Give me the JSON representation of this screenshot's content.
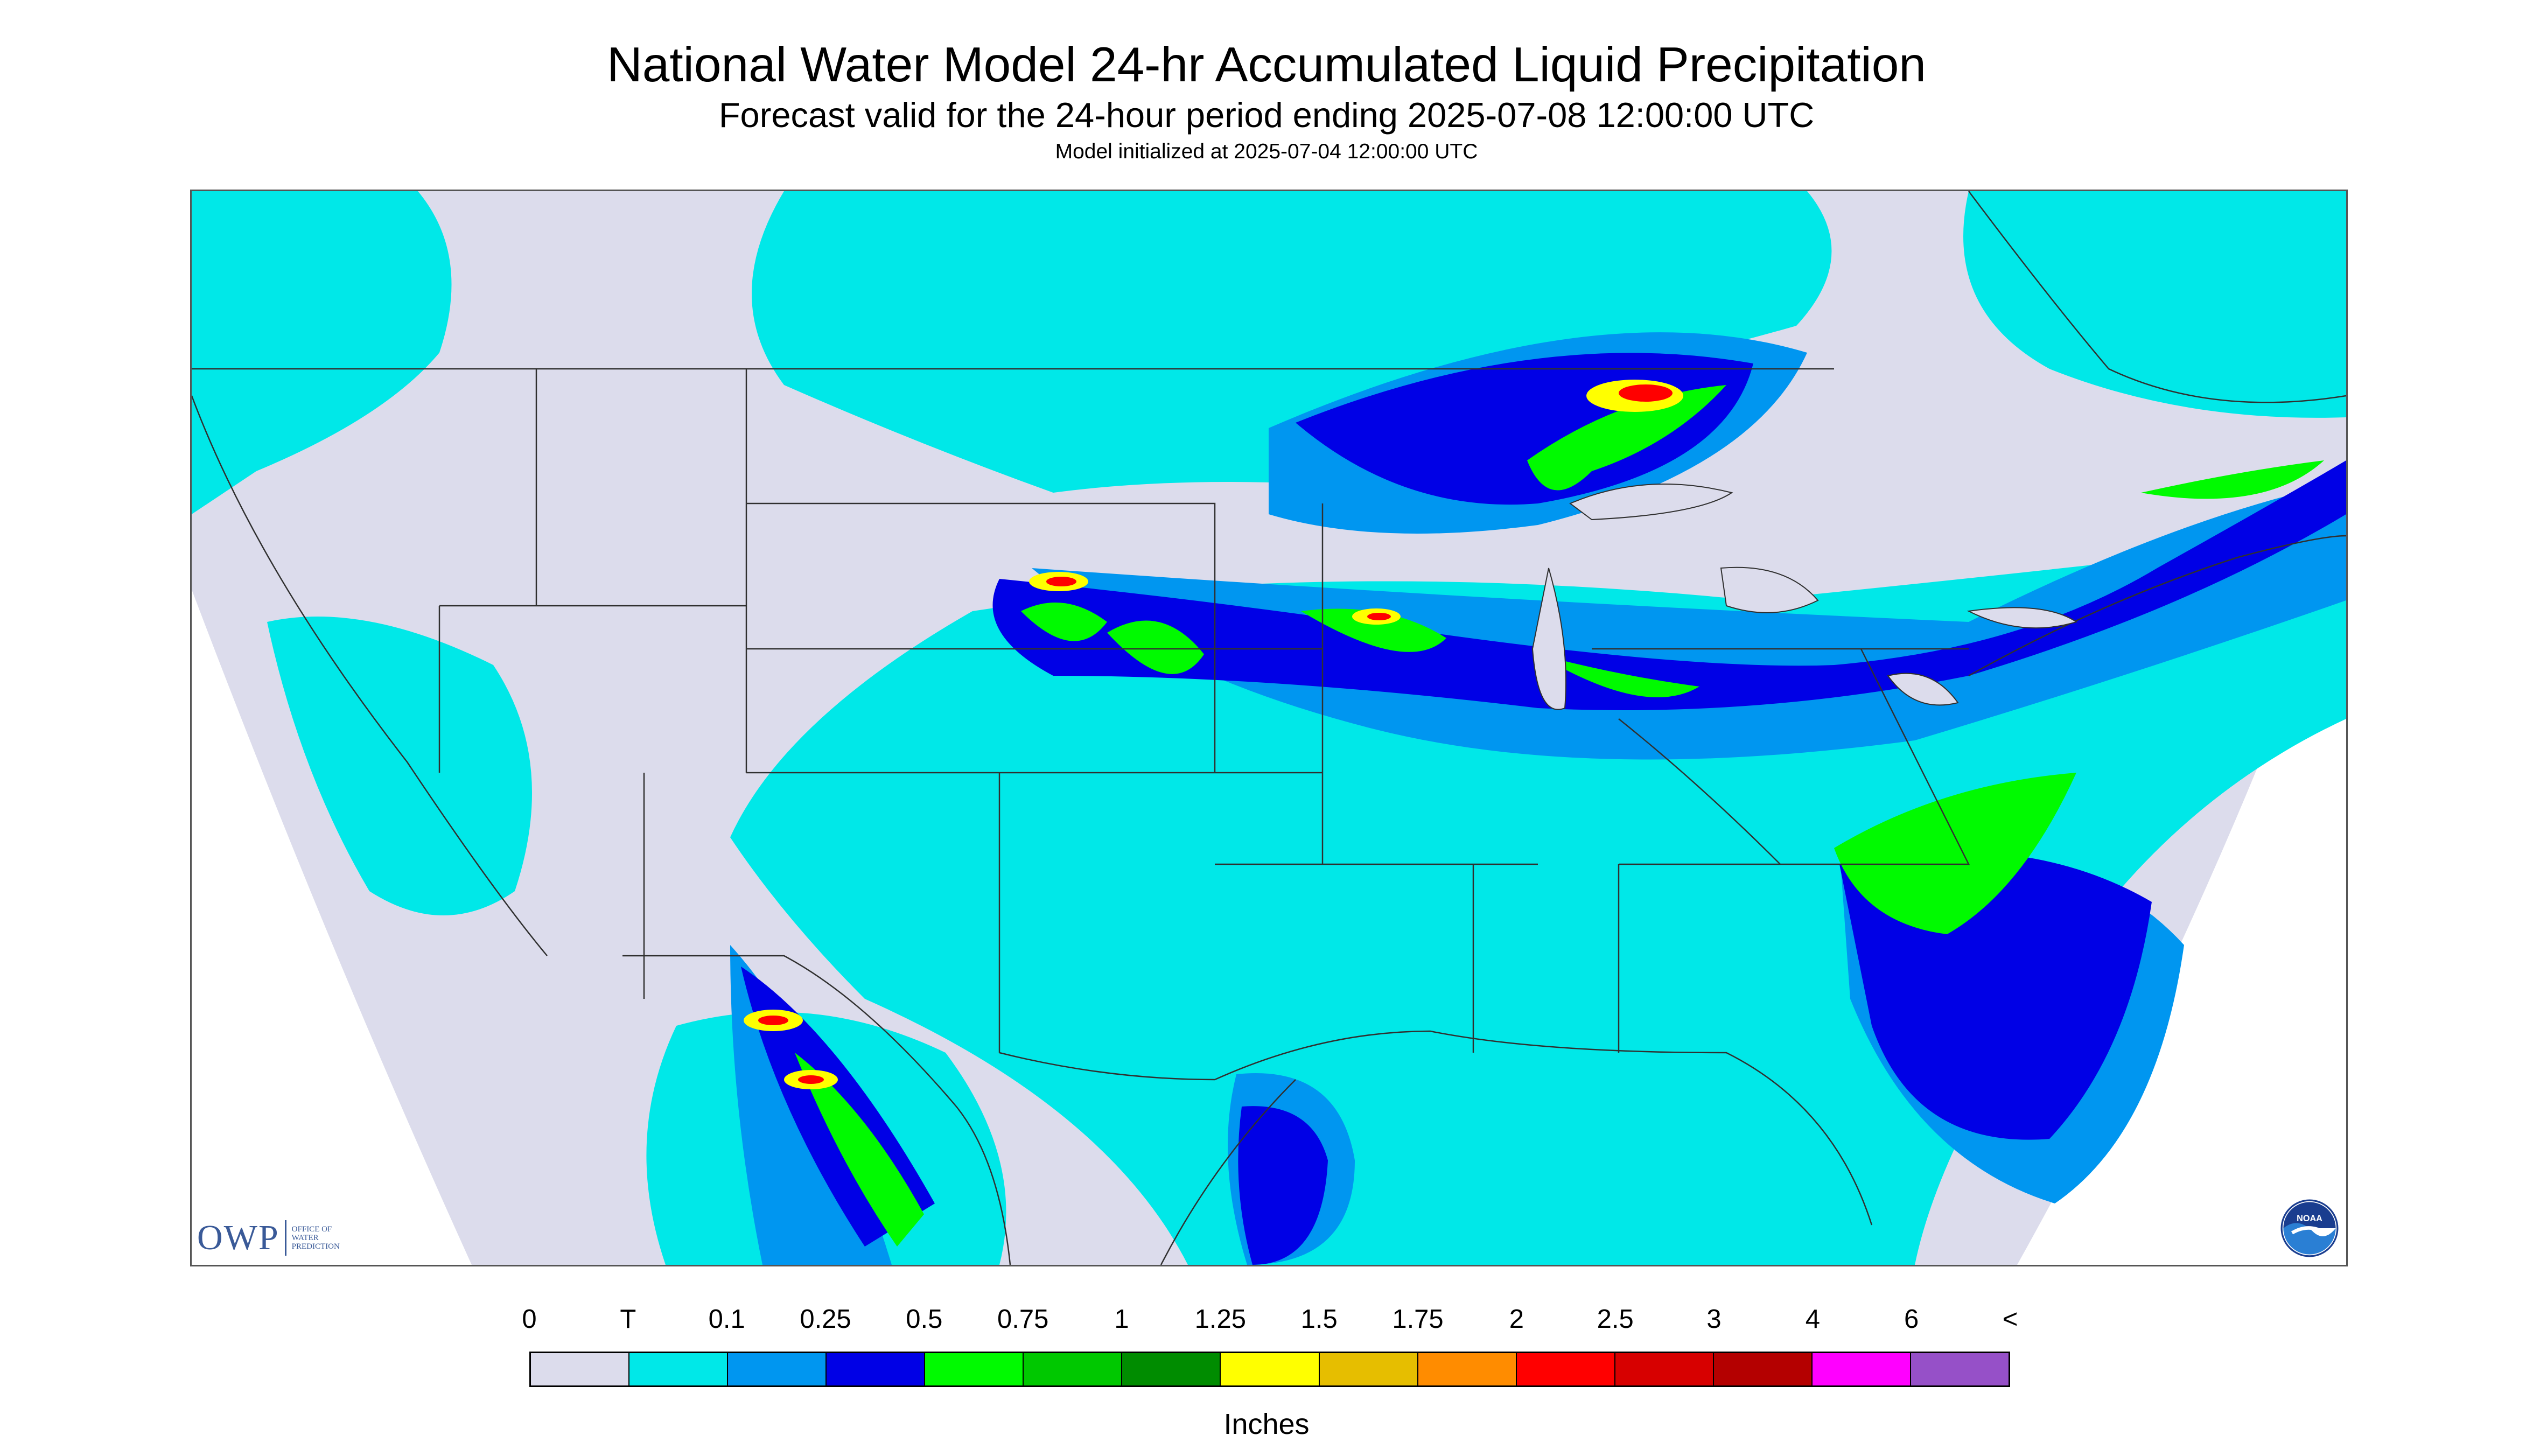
{
  "title": "National Water Model 24-hr Accumulated Liquid Precipitation",
  "subtitle": "Forecast valid for the 24-hour period ending 2025-07-08 12:00:00 UTC",
  "init_line": "Model initialized at 2025-07-04 12:00:00 UTC",
  "logos": {
    "owp_text": "OWP",
    "owp_sub_1": "OFFICE OF",
    "owp_sub_2": "WATER",
    "owp_sub_3": "PREDICTION",
    "noaa_text": "NOAA"
  },
  "legend": {
    "labels": [
      "0",
      "T",
      "0.1",
      "0.25",
      "0.5",
      "0.75",
      "1",
      "1.25",
      "1.5",
      "1.75",
      "2",
      "2.5",
      "3",
      "4",
      "6",
      "<"
    ],
    "colors": [
      "#dcdcec",
      "#00e8e8",
      "#0096f0",
      "#0000e6",
      "#00fa00",
      "#00c800",
      "#008c00",
      "#ffff00",
      "#e6be00",
      "#ff8c00",
      "#ff0000",
      "#d70000",
      "#b40000",
      "#ff00ff",
      "#9650c8"
    ],
    "units": "Inches"
  },
  "map": {
    "background_color": "#ffffff",
    "nodata_color": "#dcdcec",
    "boundary_color": "#303030"
  }
}
